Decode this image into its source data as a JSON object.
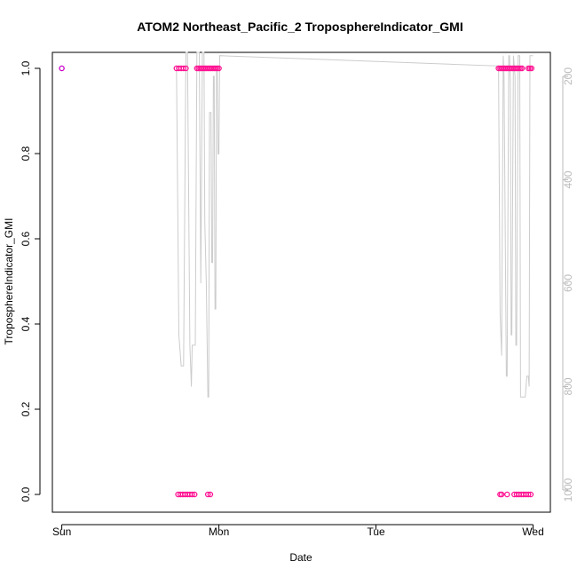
{
  "chart_data": {
    "type": "scatter",
    "title": "ATOM2 Northeast_Pacific_2 TroposphereIndicator_GMI",
    "xlabel": "Date",
    "ylabel": "TroposphereIndicator_GMI",
    "x_ticks": [
      "Sun",
      "Mon",
      "Tue",
      "Wed"
    ],
    "xlim_days": [
      -0.06,
      3.11
    ],
    "ylim": [
      0,
      1
    ],
    "y_ticks": [
      "0.0",
      "0.2",
      "0.4",
      "0.6",
      "0.8",
      "1.0"
    ],
    "y2_ticks": [
      "200",
      "400",
      "600",
      "800",
      "1000"
    ],
    "y2_range": [
      200,
      1000
    ],
    "grid": false,
    "series": [
      {
        "kind": "points",
        "color": "#cc00cc",
        "points": [
          [
            0.0,
            1
          ]
        ]
      },
      {
        "kind": "points",
        "color": "#ff1493",
        "points": [
          [
            0.73,
            1
          ],
          [
            0.745,
            1
          ],
          [
            0.76,
            1
          ],
          [
            0.775,
            1
          ],
          [
            0.79,
            1
          ],
          [
            0.74,
            0
          ],
          [
            0.755,
            0
          ],
          [
            0.77,
            0
          ],
          [
            0.785,
            0
          ],
          [
            0.8,
            0
          ],
          [
            0.815,
            0
          ],
          [
            0.83,
            0
          ],
          [
            0.845,
            0
          ],
          [
            0.86,
            1
          ],
          [
            0.87,
            1
          ],
          [
            0.88,
            1
          ],
          [
            0.89,
            1
          ],
          [
            0.9,
            1
          ],
          [
            0.91,
            1
          ],
          [
            0.92,
            1
          ],
          [
            0.93,
            1
          ],
          [
            0.94,
            1
          ],
          [
            0.95,
            1
          ],
          [
            0.96,
            1
          ],
          [
            0.97,
            1
          ],
          [
            0.98,
            1
          ],
          [
            0.99,
            1
          ],
          [
            1.0,
            1
          ],
          [
            0.93,
            0
          ],
          [
            0.945,
            0
          ],
          [
            2.78,
            1
          ],
          [
            2.79,
            1
          ],
          [
            2.8,
            1
          ],
          [
            2.81,
            1
          ],
          [
            2.82,
            1
          ],
          [
            2.83,
            1
          ],
          [
            2.84,
            1
          ],
          [
            2.85,
            1
          ],
          [
            2.86,
            1
          ],
          [
            2.87,
            1
          ],
          [
            2.88,
            1
          ],
          [
            2.89,
            1
          ],
          [
            2.9,
            1
          ],
          [
            2.91,
            1
          ],
          [
            2.92,
            1
          ],
          [
            2.93,
            1
          ],
          [
            2.79,
            0
          ],
          [
            2.8,
            0
          ],
          [
            2.835,
            0
          ],
          [
            2.88,
            0
          ],
          [
            2.895,
            0
          ],
          [
            2.91,
            0
          ],
          [
            2.925,
            0
          ],
          [
            2.94,
            0
          ],
          [
            2.955,
            0
          ],
          [
            2.97,
            0
          ],
          [
            2.985,
            0
          ],
          [
            2.97,
            1
          ],
          [
            2.98,
            1
          ],
          [
            2.99,
            1
          ]
        ]
      },
      {
        "kind": "line",
        "color": "#cccccc",
        "axis": "right",
        "points": [
          [
            0.73,
            180
          ],
          [
            0.745,
            700
          ],
          [
            0.76,
            760
          ],
          [
            0.775,
            760
          ],
          [
            0.79,
            130
          ],
          [
            0.8,
            130
          ],
          [
            0.815,
            720
          ],
          [
            0.825,
            800
          ],
          [
            0.83,
            720
          ],
          [
            0.835,
            720
          ],
          [
            0.85,
            720
          ],
          [
            0.86,
            150
          ],
          [
            0.875,
            150
          ],
          [
            0.885,
            600
          ],
          [
            0.895,
            130
          ],
          [
            0.905,
            130
          ],
          [
            0.91,
            480
          ],
          [
            0.92,
            600
          ],
          [
            0.93,
            820
          ],
          [
            0.935,
            820
          ],
          [
            0.94,
            270
          ],
          [
            0.95,
            270
          ],
          [
            0.955,
            560
          ],
          [
            0.96,
            560
          ],
          [
            0.965,
            200
          ],
          [
            0.97,
            200
          ],
          [
            0.975,
            650
          ],
          [
            0.98,
            650
          ],
          [
            0.985,
            190
          ],
          [
            0.99,
            190
          ],
          [
            0.995,
            350
          ],
          [
            1.0,
            350
          ],
          [
            1.005,
            160
          ],
          [
            2.78,
            180
          ],
          [
            2.79,
            660
          ],
          [
            2.8,
            740
          ],
          [
            2.81,
            160
          ],
          [
            2.815,
            200
          ],
          [
            2.83,
            780
          ],
          [
            2.835,
            780
          ],
          [
            2.845,
            160
          ],
          [
            2.85,
            160
          ],
          [
            2.855,
            210
          ],
          [
            2.86,
            700
          ],
          [
            2.865,
            700
          ],
          [
            2.875,
            160
          ],
          [
            2.885,
            200
          ],
          [
            2.89,
            720
          ],
          [
            2.895,
            720
          ],
          [
            2.905,
            160
          ],
          [
            2.915,
            160
          ],
          [
            2.92,
            820
          ],
          [
            2.925,
            820
          ],
          [
            2.95,
            820
          ],
          [
            2.96,
            780
          ],
          [
            2.97,
            780
          ],
          [
            2.975,
            800
          ],
          [
            2.98,
            160
          ],
          [
            3.0,
            160
          ]
        ]
      }
    ]
  }
}
